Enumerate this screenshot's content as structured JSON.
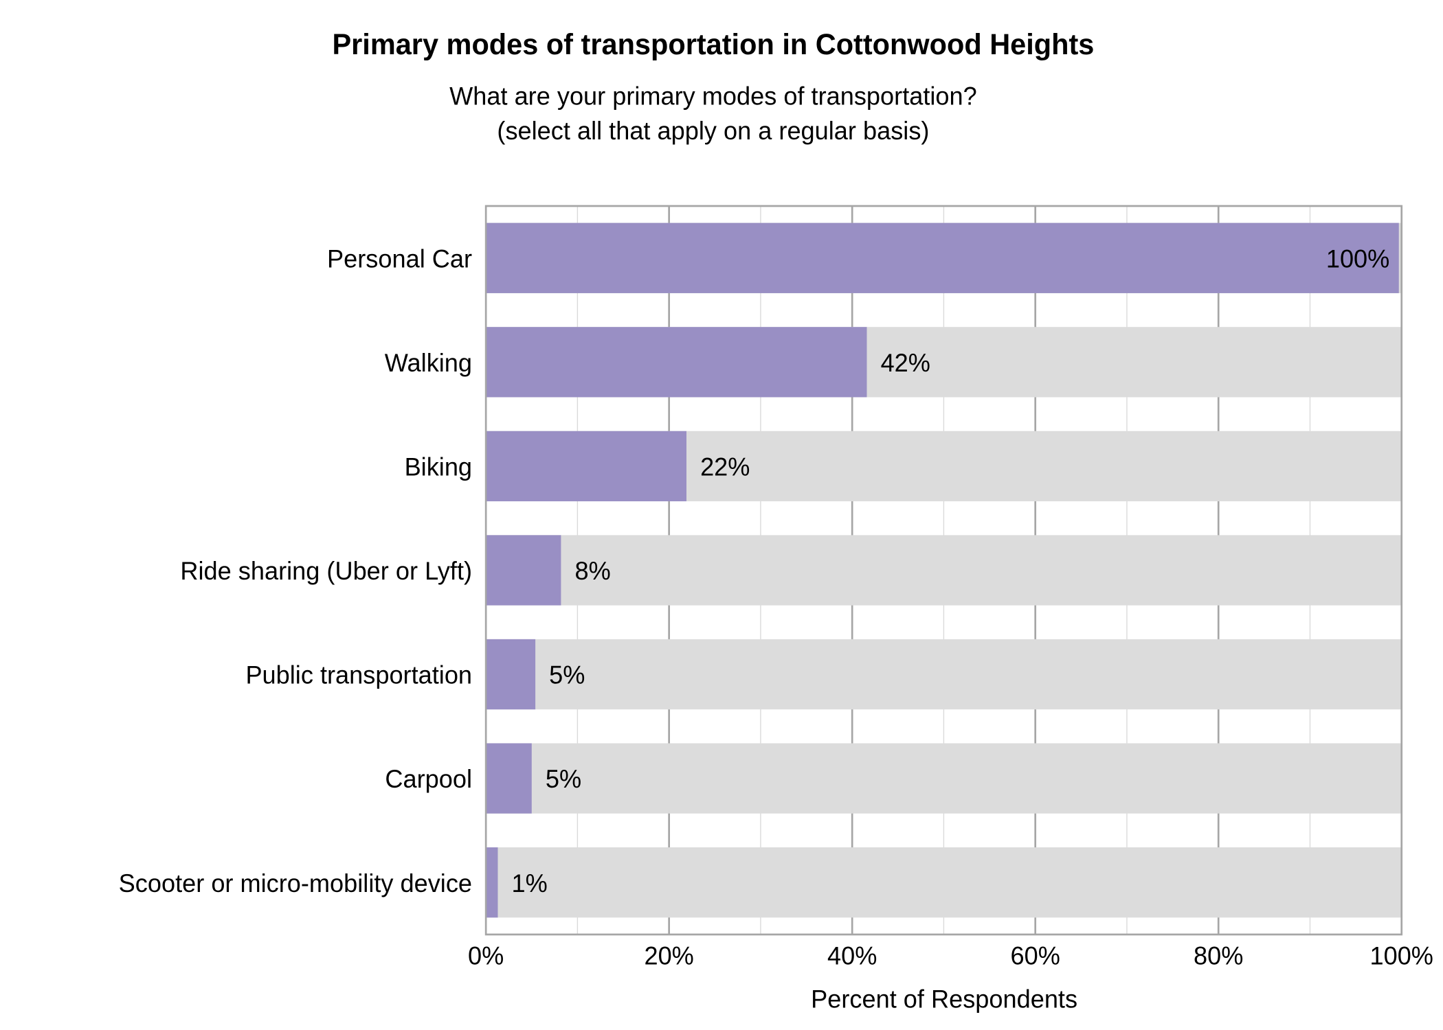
{
  "chart_data": {
    "type": "bar",
    "orientation": "horizontal",
    "title": "Primary modes of transportation in Cottonwood Heights",
    "subtitle": [
      "What are your primary modes of transportation?",
      "(select all that apply on a regular basis)"
    ],
    "xlabel": "Percent of Respondents",
    "ylabel": "",
    "xlim": [
      0,
      100
    ],
    "x_ticks": [
      "0%",
      "20%",
      "40%",
      "60%",
      "80%",
      "100%"
    ],
    "grid": true,
    "categories": [
      "Personal Car",
      "Walking",
      "Biking",
      "Ride sharing (Uber or Lyft)",
      "Public transportation",
      "Carpool",
      "Scooter or micro-mobility device"
    ],
    "values": [
      99.7,
      41.6,
      21.9,
      8.2,
      5.4,
      5.0,
      1.3
    ],
    "data_labels": [
      "100%",
      "42%",
      "22%",
      "8%",
      "5%",
      "5%",
      "1%"
    ],
    "colors": {
      "bar": "#998FC4",
      "background_bar": "#DCDCDC",
      "grid_major": "#A6A6A6",
      "grid_minor": "#D9D9D9"
    }
  }
}
